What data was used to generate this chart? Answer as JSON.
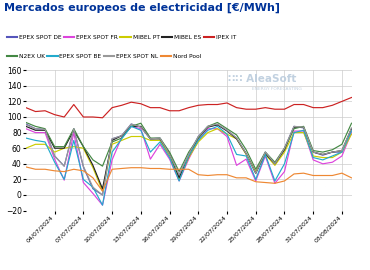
{
  "title": "Mercados europeos de electricidad [€/MWh]",
  "title_color": "#003399",
  "background_color": "#ffffff",
  "grid_color": "#cccccc",
  "dates_count": 35,
  "x_ticks_labels": [
    "04/07/2024",
    "07/07/2024",
    "10/07/2024",
    "13/07/2024",
    "16/07/2024",
    "19/07/2024",
    "22/07/2024",
    "25/07/2024",
    "28/07/2024",
    "31/07/2024",
    "03/08/2024"
  ],
  "x_ticks_positions": [
    3,
    6,
    9,
    12,
    15,
    18,
    21,
    24,
    27,
    30,
    33
  ],
  "series": {
    "EPEX SPOT DE": {
      "color": "#5555bb",
      "values": [
        91,
        85,
        84,
        50,
        37,
        85,
        36,
        8,
        0,
        72,
        76,
        91,
        87,
        72,
        73,
        52,
        25,
        52,
        75,
        88,
        90,
        83,
        73,
        53,
        28,
        55,
        40,
        60,
        88,
        86,
        55,
        51,
        55,
        55,
        85
      ]
    },
    "EPEX SPOT FR": {
      "color": "#dd44dd",
      "values": [
        85,
        80,
        80,
        46,
        19,
        80,
        16,
        2,
        -13,
        45,
        74,
        88,
        85,
        46,
        65,
        46,
        18,
        46,
        70,
        85,
        85,
        75,
        38,
        46,
        18,
        50,
        15,
        30,
        82,
        82,
        45,
        40,
        42,
        50,
        80
      ]
    },
    "MIBEL PT": {
      "color": "#cccc00",
      "values": [
        60,
        65,
        65,
        55,
        60,
        62,
        60,
        35,
        5,
        65,
        70,
        75,
        75,
        70,
        70,
        50,
        20,
        48,
        68,
        80,
        85,
        78,
        72,
        52,
        30,
        52,
        38,
        55,
        80,
        80,
        50,
        48,
        48,
        55,
        78
      ]
    },
    "MIBEL ES": {
      "color": "#222222",
      "values": [
        88,
        83,
        83,
        60,
        60,
        83,
        62,
        38,
        8,
        70,
        76,
        88,
        88,
        72,
        72,
        53,
        22,
        50,
        73,
        87,
        90,
        82,
        72,
        53,
        28,
        53,
        40,
        58,
        87,
        87,
        55,
        52,
        55,
        57,
        85
      ]
    },
    "IPEX IT": {
      "color": "#cc2222",
      "values": [
        112,
        107,
        108,
        103,
        100,
        116,
        100,
        100,
        99,
        112,
        115,
        119,
        117,
        112,
        112,
        108,
        108,
        112,
        115,
        116,
        116,
        118,
        112,
        110,
        110,
        112,
        110,
        110,
        116,
        116,
        112,
        112,
        115,
        120,
        125
      ]
    },
    "N2EX UK": {
      "color": "#448844",
      "values": [
        93,
        88,
        85,
        62,
        62,
        85,
        62,
        45,
        37,
        68,
        73,
        88,
        92,
        73,
        73,
        55,
        30,
        55,
        73,
        88,
        93,
        85,
        77,
        58,
        33,
        55,
        42,
        60,
        85,
        88,
        57,
        55,
        58,
        65,
        92
      ]
    },
    "EPEX SPOT BE": {
      "color": "#22aacc",
      "values": [
        73,
        70,
        68,
        42,
        20,
        70,
        20,
        10,
        -13,
        55,
        72,
        88,
        83,
        55,
        68,
        48,
        18,
        50,
        70,
        83,
        88,
        78,
        52,
        50,
        20,
        52,
        18,
        40,
        80,
        83,
        48,
        45,
        50,
        55,
        82
      ]
    },
    "EPEX SPOT NL": {
      "color": "#999999",
      "values": [
        90,
        85,
        84,
        50,
        37,
        85,
        37,
        10,
        0,
        72,
        76,
        91,
        87,
        72,
        73,
        52,
        26,
        52,
        75,
        88,
        91,
        83,
        73,
        53,
        28,
        55,
        40,
        60,
        88,
        87,
        55,
        52,
        55,
        57,
        86
      ]
    },
    "Nord Pool": {
      "color": "#ee8833",
      "values": [
        36,
        33,
        33,
        31,
        30,
        33,
        31,
        22,
        5,
        33,
        34,
        35,
        35,
        34,
        34,
        33,
        33,
        33,
        26,
        25,
        26,
        26,
        22,
        22,
        17,
        16,
        15,
        18,
        27,
        28,
        25,
        25,
        25,
        28,
        22
      ]
    }
  },
  "ylim": [
    -20,
    160
  ],
  "yticks": [
    -20,
    0,
    20,
    40,
    60,
    80,
    100,
    120,
    140,
    160
  ],
  "legend_rows": [
    [
      "EPEX SPOT DE",
      "EPEX SPOT FR",
      "MIBEL PT",
      "MIBEL ES",
      "IPEX IT"
    ],
    [
      "N2EX UK",
      "EPEX SPOT BE",
      "EPEX SPOT NL",
      "Nord Pool"
    ]
  ]
}
